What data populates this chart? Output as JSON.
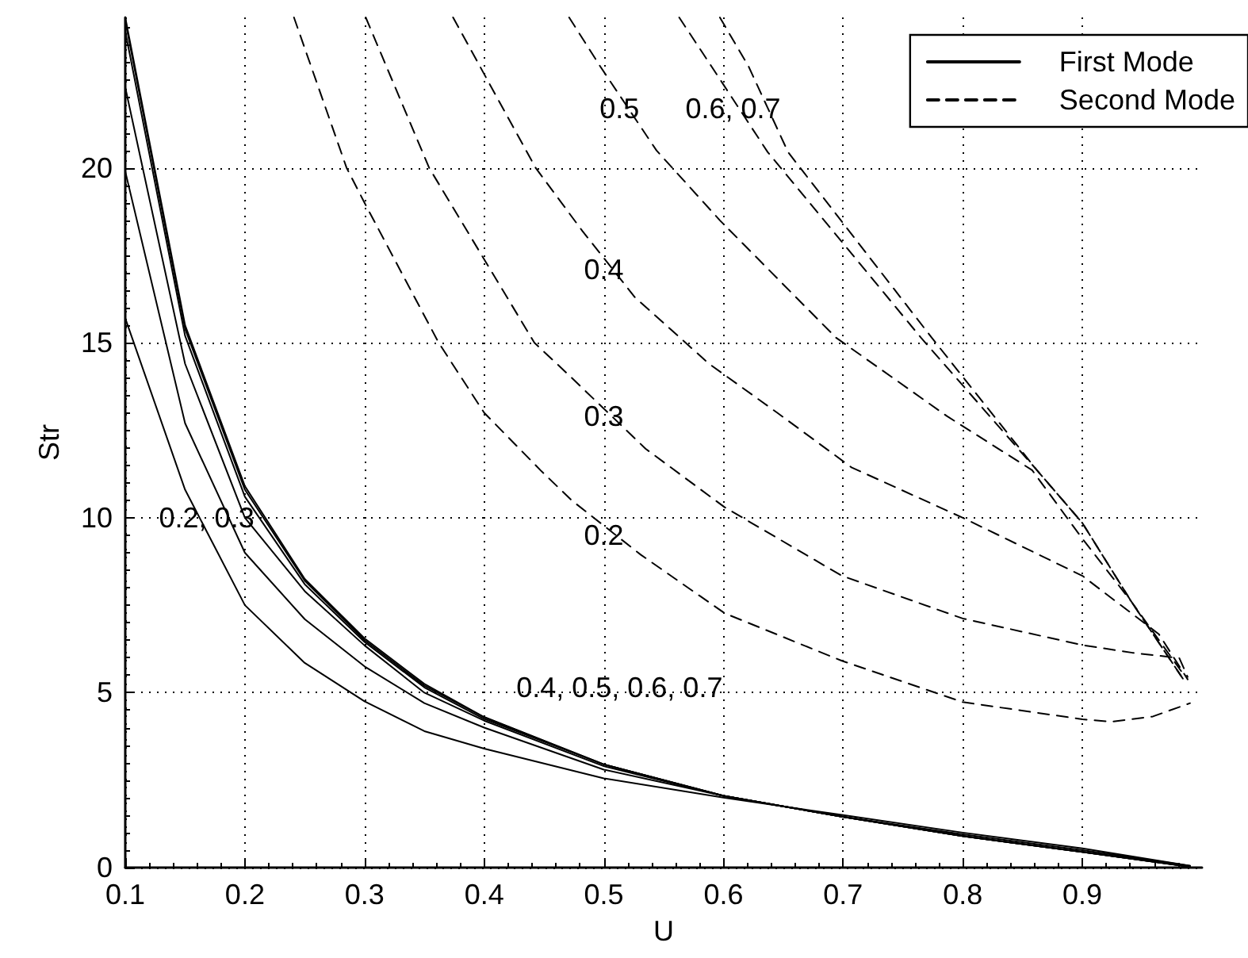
{
  "chart_data": {
    "type": "line",
    "xlabel": "U",
    "ylabel": "Str",
    "xlim": [
      0.1,
      1.0
    ],
    "ylim": [
      0,
      24.3
    ],
    "xticks": [
      0.1,
      0.2,
      0.3,
      0.4,
      0.5,
      0.6,
      0.7,
      0.8,
      0.9
    ],
    "yticks": [
      0,
      5,
      10,
      15,
      20
    ],
    "grid": true,
    "legend": "top right",
    "marker": "none",
    "series": [
      {
        "name": "First Mode",
        "color": "#000000",
        "line_style": "solid",
        "x": [
          0.1,
          0.15,
          0.2,
          0.25,
          0.3,
          0.35,
          0.4,
          0.5,
          0.6,
          0.7,
          0.8,
          0.9,
          0.99
        ],
        "values": [
          15.7,
          10.8,
          7.5,
          5.85,
          4.75,
          3.9,
          3.4,
          2.55,
          2.0,
          1.5,
          1.0,
          0.55,
          0.05
        ]
      },
      {
        "color": "#000000",
        "line_style": "solid",
        "x": [
          0.1,
          0.15,
          0.2,
          0.25,
          0.3,
          0.35,
          0.4,
          0.5,
          0.6,
          0.7,
          0.8,
          0.9,
          0.99
        ],
        "values": [
          19.9,
          12.7,
          9.0,
          7.1,
          5.75,
          4.7,
          4.0,
          2.8,
          2.05,
          1.45,
          0.95,
          0.5,
          0.05
        ]
      },
      {
        "color": "#000000",
        "line_style": "solid",
        "x": [
          0.1,
          0.15,
          0.2,
          0.25,
          0.3,
          0.35,
          0.4,
          0.5,
          0.6,
          0.7,
          0.8,
          0.9,
          0.99
        ],
        "values": [
          22.3,
          14.4,
          10.0,
          7.9,
          6.35,
          5.0,
          4.2,
          2.9,
          2.05,
          1.45,
          0.9,
          0.45,
          0.03
        ]
      },
      {
        "color": "#000000",
        "line_style": "solid",
        "x": [
          0.1,
          0.15,
          0.2,
          0.25,
          0.3,
          0.35,
          0.4,
          0.5,
          0.6,
          0.7,
          0.8,
          0.9,
          0.99
        ],
        "values": [
          23.9,
          15.2,
          10.6,
          8.1,
          6.45,
          5.15,
          4.25,
          2.95,
          2.05,
          1.45,
          0.9,
          0.45,
          0.03
        ]
      },
      {
        "color": "#000000",
        "line_style": "solid",
        "x": [
          0.1,
          0.15,
          0.2,
          0.25,
          0.3,
          0.35,
          0.4,
          0.5,
          0.6,
          0.7,
          0.8,
          0.9,
          0.99
        ],
        "values": [
          24.2,
          15.4,
          10.8,
          8.2,
          6.5,
          5.2,
          4.3,
          2.95,
          2.05,
          1.45,
          0.9,
          0.45,
          0.02
        ]
      },
      {
        "color": "#000000",
        "line_style": "solid",
        "x": [
          0.1,
          0.15,
          0.2,
          0.25,
          0.3,
          0.35,
          0.4,
          0.5,
          0.6,
          0.7,
          0.8,
          0.9,
          0.99
        ],
        "values": [
          24.3,
          15.5,
          10.9,
          8.25,
          6.55,
          5.25,
          4.3,
          2.95,
          2.05,
          1.45,
          0.9,
          0.45,
          0.02
        ]
      },
      {
        "name": "Second Mode",
        "color": "#000000",
        "line_style": "dashed",
        "x": [
          0.241,
          0.285,
          0.3,
          0.362,
          0.4,
          0.447,
          0.473,
          0.531,
          0.601,
          0.699,
          0.8,
          0.9,
          0.924,
          0.959,
          0.99
        ],
        "values": [
          24.3,
          20,
          19.0,
          15,
          13.0,
          11.36,
          10.5,
          8.94,
          7.27,
          5.91,
          4.73,
          4.24,
          4.17,
          4.32,
          4.7
        ]
      },
      {
        "color": "#000000",
        "line_style": "dashed",
        "x": [
          0.301,
          0.354,
          0.442,
          0.471,
          0.535,
          0.601,
          0.699,
          0.8,
          0.9,
          0.942,
          0.981,
          0.988
        ],
        "values": [
          24.3,
          20,
          15,
          14.07,
          11.97,
          10.3,
          8.34,
          7.12,
          6.36,
          6.14,
          5.99,
          5.45
        ]
      },
      {
        "color": "#000000",
        "line_style": "dashed",
        "x": [
          0.374,
          0.443,
          0.482,
          0.526,
          0.588,
          0.645,
          0.707,
          0.8,
          0.9,
          0.941,
          0.964,
          0.988
        ],
        "values": [
          24.3,
          20,
          18.2,
          16.3,
          14.4,
          13.0,
          11.44,
          10.0,
          8.34,
          7.27,
          6.67,
          5.38
        ]
      },
      {
        "color": "#000000",
        "line_style": "dashed",
        "x": [
          0.471,
          0.497,
          0.544,
          0.597,
          0.694,
          0.787,
          0.858,
          0.9,
          0.941,
          0.985
        ],
        "values": [
          24.3,
          22.9,
          20.5,
          18.5,
          15.15,
          12.9,
          11.36,
          9.4,
          7.6,
          5.5
        ]
      },
      {
        "color": "#000000",
        "line_style": "dashed",
        "x": [
          0.563,
          0.59,
          0.637,
          0.765,
          0.862,
          0.9,
          0.941,
          0.984
        ],
        "values": [
          24.3,
          22.9,
          20.45,
          15.15,
          11.36,
          9.85,
          7.6,
          5.4
        ]
      },
      {
        "color": "#000000",
        "line_style": "dashed",
        "x": [
          0.597,
          0.621,
          0.654,
          0.774,
          0.862,
          0.9,
          0.941,
          0.984
        ],
        "values": [
          24.3,
          22.9,
          20.45,
          15.15,
          11.36,
          9.85,
          7.6,
          5.4
        ]
      }
    ],
    "annotations": [
      {
        "text": "0.5",
        "x": 0.513,
        "y": 21.7
      },
      {
        "text": "0.6, 0.7",
        "x": 0.608,
        "y": 21.7
      },
      {
        "text": "0.4",
        "x": 0.5,
        "y": 17.1
      },
      {
        "text": "0.3",
        "x": 0.5,
        "y": 12.9
      },
      {
        "text": "0.2",
        "x": 0.5,
        "y": 9.5
      },
      {
        "text": "0.2, 0.3",
        "x": 0.168,
        "y": 10
      },
      "0.4, 0.5, 0.6, 0.7"
    ]
  }
}
